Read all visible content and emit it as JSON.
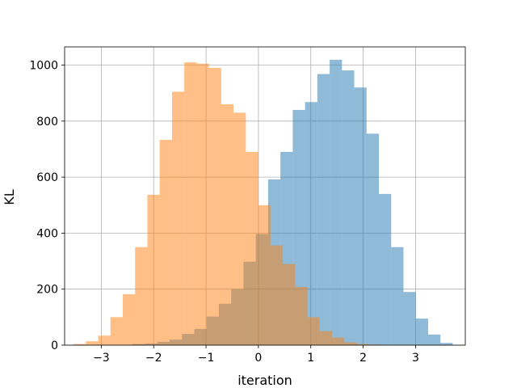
{
  "chart_data": {
    "type": "histogram",
    "title": "",
    "xlabel": "iteration",
    "ylabel": "KL",
    "xlim": [
      -3.7,
      3.95
    ],
    "ylim": [
      0,
      1065
    ],
    "xticks": [
      -3,
      -2,
      -1,
      0,
      1,
      2,
      3
    ],
    "xtick_labels": [
      "−3",
      "−2",
      "−1",
      "0",
      "1",
      "2",
      "3"
    ],
    "yticks": [
      0,
      200,
      400,
      600,
      800,
      1000
    ],
    "ytick_labels": [
      "0",
      "200",
      "400",
      "600",
      "800",
      "1000"
    ],
    "grid": true,
    "bin_width": 0.235,
    "series": [
      {
        "color": "#1f77b4",
        "alpha": 0.5,
        "bin_edges": [
          -2.87,
          -2.635,
          -2.4,
          -2.165,
          -1.93,
          -1.695,
          -1.46,
          -1.225,
          -0.99,
          -0.755,
          -0.52,
          -0.285,
          -0.05,
          0.185,
          0.42,
          0.655,
          0.89,
          1.125,
          1.36,
          1.595,
          1.83,
          2.065,
          2.3,
          2.535,
          2.77,
          3.005,
          3.24,
          3.475,
          3.71
        ],
        "counts": [
          1,
          1,
          4,
          6,
          12,
          20,
          40,
          58,
          102,
          148,
          200,
          298,
          397,
          592,
          690,
          840,
          868,
          968,
          1019,
          981,
          920,
          755,
          540,
          350,
          190,
          95,
          38,
          8
        ]
      },
      {
        "color": "#ff7f0e",
        "alpha": 0.5,
        "bin_edges": [
          -3.53,
          -3.295,
          -3.06,
          -2.825,
          -2.59,
          -2.355,
          -2.12,
          -1.885,
          -1.65,
          -1.415,
          -1.18,
          -0.945,
          -0.71,
          -0.475,
          -0.24,
          -0.005,
          0.23,
          0.465,
          0.7,
          0.935,
          1.17,
          1.405,
          1.64,
          1.875,
          2.11,
          2.345
        ],
        "counts": [
          4,
          14,
          34,
          100,
          182,
          350,
          537,
          733,
          905,
          1010,
          1005,
          990,
          860,
          830,
          690,
          500,
          356,
          290,
          208,
          100,
          50,
          27,
          10,
          4,
          2
        ]
      }
    ]
  }
}
